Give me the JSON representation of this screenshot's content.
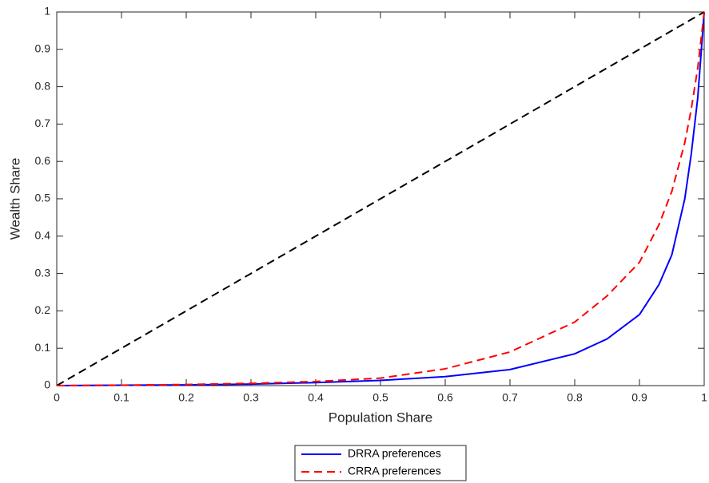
{
  "chart_data": {
    "type": "line",
    "xlabel": "Population Share",
    "ylabel": "Wealth Share",
    "x": [
      0,
      0.1,
      0.2,
      0.3,
      0.4,
      0.5,
      0.6,
      0.7,
      0.8,
      0.85,
      0.9,
      0.93,
      0.95,
      0.97,
      0.98,
      0.99,
      1
    ],
    "series": [
      {
        "color": "#000000",
        "dash": true,
        "values": [
          0,
          0.1,
          0.2,
          0.3,
          0.4,
          0.5,
          0.6,
          0.7,
          0.8,
          0.85,
          0.9,
          0.93,
          0.95,
          0.97,
          0.98,
          0.99,
          1
        ]
      },
      {
        "name": "DRRA preferences",
        "color": "#0000ff",
        "dash": false,
        "values": [
          0,
          0.001,
          0.002,
          0.004,
          0.008,
          0.014,
          0.024,
          0.043,
          0.085,
          0.125,
          0.19,
          0.27,
          0.35,
          0.5,
          0.62,
          0.77,
          1
        ]
      },
      {
        "name": "CRRA preferences",
        "color": "#ff0000",
        "dash": true,
        "values": [
          0,
          0.001,
          0.003,
          0.006,
          0.011,
          0.02,
          0.045,
          0.09,
          0.17,
          0.24,
          0.33,
          0.43,
          0.52,
          0.65,
          0.74,
          0.85,
          1
        ]
      }
    ],
    "xlim": [
      0,
      1
    ],
    "ylim": [
      0,
      1
    ],
    "xticks": [
      0,
      0.1,
      0.2,
      0.3,
      0.4,
      0.5,
      0.6,
      0.7,
      0.8,
      0.9,
      1
    ],
    "yticks": [
      0,
      0.1,
      0.2,
      0.3,
      0.4,
      0.5,
      0.6,
      0.7,
      0.8,
      0.9,
      1
    ],
    "grid": false,
    "legend": "below"
  }
}
